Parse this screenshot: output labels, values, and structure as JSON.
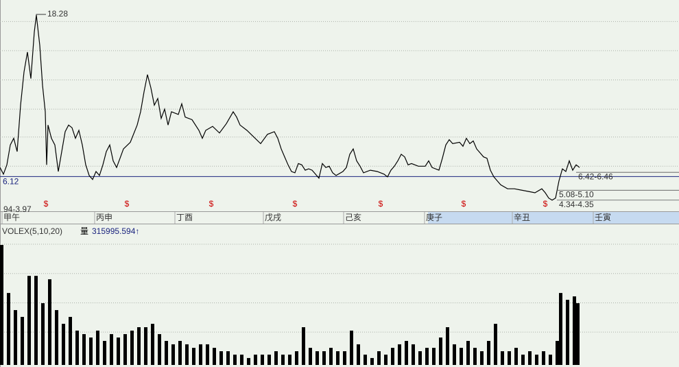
{
  "chart_data": {
    "type": "line",
    "series": [
      {
        "name": "price",
        "color": "#000000",
        "x": [
          0,
          5,
          10,
          15,
          20,
          25,
          30,
          35,
          40,
          45,
          50,
          53,
          58,
          62,
          66,
          68,
          70,
          75,
          80,
          85,
          90,
          95,
          100,
          105,
          110,
          115,
          120,
          125,
          130,
          135,
          140,
          145,
          150,
          155,
          160,
          165,
          170,
          175,
          180,
          190,
          200,
          205,
          210,
          215,
          220,
          225,
          230,
          235,
          240,
          245,
          250,
          260,
          265,
          270,
          280,
          290,
          295,
          300,
          310,
          320,
          330,
          340,
          345,
          350,
          360,
          370,
          380,
          390,
          400,
          405,
          410,
          415,
          420,
          425,
          430,
          435,
          440,
          445,
          450,
          455,
          460,
          465,
          470,
          475,
          480,
          485,
          490,
          500,
          505,
          510,
          515,
          520,
          525,
          530,
          540,
          550,
          560,
          565,
          570,
          575,
          580,
          585,
          590,
          595,
          600,
          610,
          620,
          625,
          630,
          640,
          645,
          650,
          655,
          660,
          670,
          675,
          680,
          685,
          690,
          695,
          700,
          705,
          710,
          715,
          720,
          725,
          730,
          740,
          750,
          760,
          770,
          780,
          790,
          795,
          800,
          805,
          810,
          815,
          820,
          825,
          830,
          835,
          840,
          845
        ],
        "values": [
          6.8,
          6.3,
          7.0,
          8.5,
          9.0,
          8.0,
          11.5,
          14.0,
          15.5,
          13.5,
          17.0,
          18.28,
          16.0,
          13.0,
          11.0,
          7.0,
          10.0,
          9.0,
          8.5,
          6.5,
          8.0,
          9.5,
          10.0,
          9.8,
          9.0,
          9.6,
          8.5,
          7.0,
          6.2,
          5.9,
          6.5,
          6.2,
          7.0,
          8.0,
          8.5,
          7.3,
          6.8,
          7.5,
          8.2,
          8.7,
          10.0,
          11.0,
          12.5,
          13.8,
          12.8,
          11.5,
          12.0,
          10.5,
          11.2,
          10.0,
          11.0,
          10.8,
          11.6,
          10.6,
          10.4,
          9.6,
          9.0,
          9.6,
          9.9,
          9.4,
          10.1,
          11.0,
          10.6,
          10.0,
          9.6,
          9.1,
          8.6,
          9.3,
          9.5,
          9.0,
          8.2,
          7.6,
          7.0,
          6.5,
          6.4,
          7.1,
          7.0,
          6.6,
          6.7,
          6.6,
          6.3,
          6.0,
          7.1,
          6.8,
          6.9,
          6.4,
          6.2,
          6.5,
          6.8,
          7.8,
          8.2,
          7.3,
          6.9,
          6.4,
          6.6,
          6.5,
          6.3,
          6.1,
          6.6,
          6.9,
          7.3,
          7.8,
          7.6,
          7.0,
          7.1,
          6.9,
          6.9,
          7.3,
          6.8,
          6.6,
          7.5,
          8.5,
          8.9,
          8.6,
          8.7,
          8.4,
          9.0,
          8.6,
          8.8,
          8.2,
          7.9,
          7.6,
          7.5,
          6.6,
          6.1,
          5.8,
          5.5,
          5.2,
          5.2,
          5.1,
          5.0,
          4.9,
          5.2,
          4.9,
          4.5,
          4.34,
          4.5,
          5.8,
          6.7,
          6.5,
          7.3,
          6.6,
          7.0,
          6.8
        ]
      }
    ],
    "xlim": [
      0,
      990
    ],
    "ylim": [
      3.4,
      19.42
    ],
    "ygrid": [
      17.8,
      15.6,
      13.4,
      11.2,
      9.1,
      6.9
    ],
    "baseline": {
      "value": 6.12,
      "label": "6.12",
      "color": "#1a237e"
    },
    "annotations": [
      {
        "text": "18.28",
        "value": 18.28,
        "x": 53
      },
      {
        "text": "6.42-6.46",
        "value": 6.44,
        "x": 840
      },
      {
        "text": "5.08-5.10",
        "value": 5.09,
        "x": 812
      },
      {
        "text": "4.34-4.35",
        "value": 4.345,
        "x": 812
      },
      {
        "text": "94-3.97",
        "value": 3.97,
        "x": 0
      }
    ],
    "dividend_marker": "$",
    "dividend_color": "#cc0000",
    "dividend_x": [
      67,
      185,
      308,
      430,
      555,
      676,
      795
    ],
    "periods": [
      {
        "label": "甲午",
        "x": 2
      },
      {
        "label": "丙申",
        "x": 137
      },
      {
        "label": "丁酉",
        "x": 254
      },
      {
        "label": "戊戌",
        "x": 383
      },
      {
        "label": "己亥",
        "x": 500
      },
      {
        "label": "庚子",
        "x": 618
      },
      {
        "label": "辛丑",
        "x": 746
      },
      {
        "label": "壬寅",
        "x": 864
      }
    ],
    "highlight_from": 5,
    "volume": {
      "title": "VOLEX(5,10,20)",
      "name": "量",
      "latest": "315995.594↑",
      "color": "#000000",
      "ylim": [
        0,
        1200000
      ],
      "ygrid": [
        1030000,
        780000,
        530000,
        280000
      ],
      "x": [
        0,
        10,
        20,
        30,
        40,
        50,
        60,
        70,
        80,
        90,
        100,
        110,
        120,
        130,
        140,
        150,
        160,
        170,
        180,
        190,
        200,
        210,
        220,
        230,
        240,
        250,
        260,
        270,
        280,
        290,
        300,
        310,
        320,
        330,
        340,
        350,
        360,
        370,
        380,
        390,
        400,
        410,
        420,
        430,
        440,
        450,
        460,
        470,
        480,
        490,
        500,
        510,
        520,
        530,
        540,
        550,
        560,
        570,
        580,
        590,
        600,
        610,
        620,
        630,
        640,
        650,
        660,
        670,
        680,
        690,
        700,
        710,
        720,
        730,
        740,
        750,
        760,
        770,
        780,
        790,
        800,
        810,
        815,
        825,
        835,
        840
      ],
      "values": [
        1024000,
        614000,
        468000,
        410000,
        760000,
        760000,
        527000,
        731000,
        468000,
        351000,
        410000,
        293000,
        263000,
        234000,
        293000,
        205000,
        263000,
        234000,
        263000,
        293000,
        322000,
        322000,
        351000,
        263000,
        205000,
        176000,
        205000,
        176000,
        146000,
        176000,
        176000,
        146000,
        117000,
        117000,
        88000,
        88000,
        59000,
        88000,
        88000,
        88000,
        117000,
        88000,
        88000,
        117000,
        322000,
        146000,
        117000,
        117000,
        146000,
        117000,
        117000,
        293000,
        176000,
        88000,
        59000,
        117000,
        88000,
        146000,
        176000,
        205000,
        176000,
        117000,
        146000,
        146000,
        234000,
        322000,
        176000,
        146000,
        205000,
        146000,
        117000,
        205000,
        351000,
        117000,
        117000,
        146000,
        88000,
        117000,
        88000,
        117000,
        88000,
        205000,
        614000,
        556000,
        585000,
        527000
      ]
    }
  }
}
